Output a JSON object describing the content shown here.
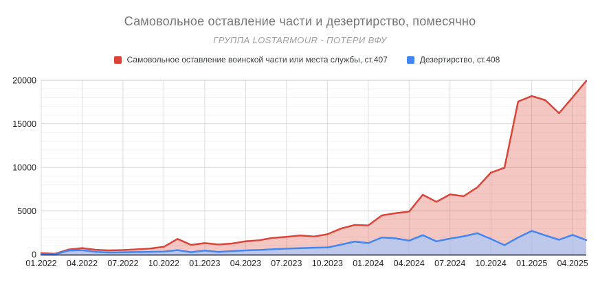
{
  "header": {
    "title": "Самовольное оставление части и дезертирство, помесячно",
    "subtitle": "ГРУППА LOSTARMOUR - ПОТЕРИ ВФУ"
  },
  "legend": {
    "items": [
      {
        "label": "Самовольное оставление воинской части или места службы, ст.407",
        "color": "#db4437"
      },
      {
        "label": "Дезертирство, ст.408",
        "color": "#4285f4"
      }
    ]
  },
  "colors": {
    "title_text": "#757575",
    "subtitle_text": "#9e9e9e",
    "axis_text": "#222222",
    "axis_line": "#333333",
    "major_grid": "#cccccc",
    "minor_grid": "#f1f1f1",
    "vertical_grid": "#dddddd"
  },
  "chart_data": {
    "type": "area",
    "title": "Самовольное оставление части и дезертирство, помесячно",
    "subtitle": "ГРУППА LOSTARMOUR - ПОТЕРИ ВФУ",
    "xlabel": "",
    "ylabel": "",
    "grid": true,
    "legend_position": "top",
    "ylim": [
      0,
      20000
    ],
    "y_ticks": [
      0,
      5000,
      10000,
      15000,
      20000
    ],
    "minor_grid_step": 1000,
    "x_tick_step": 3,
    "x": [
      "01.2022",
      "02.2022",
      "03.2022",
      "04.2022",
      "05.2022",
      "06.2022",
      "07.2022",
      "08.2022",
      "09.2022",
      "10.2022",
      "11.2022",
      "12.2022",
      "01.2023",
      "02.2023",
      "03.2023",
      "04.2023",
      "05.2023",
      "06.2023",
      "07.2023",
      "08.2023",
      "09.2023",
      "10.2023",
      "11.2023",
      "12.2023",
      "01.2024",
      "02.2024",
      "03.2024",
      "04.2024",
      "05.2024",
      "06.2024",
      "07.2024",
      "08.2024",
      "09.2024",
      "10.2024",
      "11.2024",
      "12.2024",
      "01.2025",
      "02.2025",
      "03.2025",
      "04.2025",
      "05.2025"
    ],
    "series": [
      {
        "name": "Самовольное оставление воинской части или места службы, ст.407",
        "color": "#db4437",
        "fill": "rgba(219,68,55,0.30)",
        "values": [
          160,
          90,
          570,
          740,
          540,
          470,
          510,
          590,
          690,
          880,
          1790,
          1100,
          1310,
          1150,
          1260,
          1520,
          1640,
          1910,
          2030,
          2180,
          2060,
          2320,
          2980,
          3390,
          3340,
          4490,
          4740,
          4930,
          6860,
          6050,
          6900,
          6690,
          7700,
          9390,
          9950,
          17560,
          18190,
          17720,
          16220,
          18050,
          19930
        ]
      },
      {
        "name": "Дезертирство, ст.408",
        "color": "#4285f4",
        "fill": "rgba(66,133,244,0.33)",
        "underlay": "rgba(255,255,255,0.60)",
        "values": [
          50,
          30,
          450,
          490,
          310,
          240,
          260,
          280,
          310,
          340,
          500,
          270,
          450,
          300,
          390,
          470,
          520,
          600,
          680,
          730,
          780,
          800,
          1130,
          1490,
          1310,
          1960,
          1850,
          1590,
          2220,
          1510,
          1830,
          2090,
          2450,
          1790,
          1070,
          1950,
          2710,
          2190,
          1690,
          2250,
          1660
        ]
      }
    ]
  }
}
